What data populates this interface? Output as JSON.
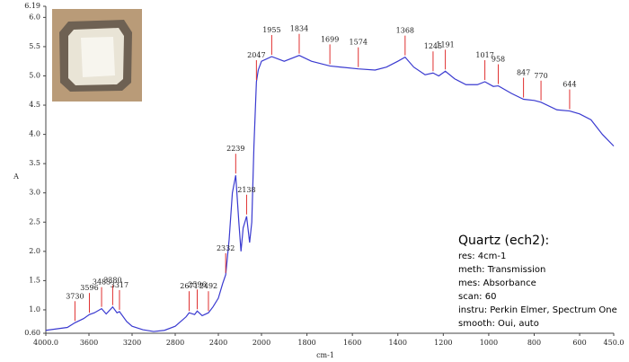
{
  "chart_data": {
    "type": "line",
    "x_label": "cm-1",
    "y_label": "A",
    "xlim": [
      4000,
      450
    ],
    "xbreak": 2000,
    "ylim": [
      0.6,
      6.19
    ],
    "xticks": [
      {
        "value": 4000,
        "label": "4000.0"
      },
      3600,
      3200,
      2800,
      2400,
      2000,
      1800,
      1600,
      1400,
      1200,
      1000,
      800,
      600,
      {
        "value": 450,
        "label": "450.0"
      }
    ],
    "yticks": [
      {
        "value": 0.6,
        "label": "0.60"
      },
      {
        "value": 1,
        "label": "1.0"
      },
      1.5,
      {
        "value": 2,
        "label": "2.0"
      },
      2.5,
      {
        "value": 3,
        "label": "3.0"
      },
      3.5,
      {
        "value": 4,
        "label": "4.0"
      },
      4.5,
      {
        "value": 5,
        "label": "5.0"
      },
      5.5,
      {
        "value": 6,
        "label": "6.0"
      },
      6.19
    ],
    "series": [
      {
        "color": "#3a3ad0",
        "x": [
          4000,
          3800,
          3730,
          3650,
          3596,
          3550,
          3483,
          3440,
          3380,
          3340,
          3317,
          3250,
          3200,
          3100,
          3000,
          2900,
          2800,
          2700,
          2671,
          2620,
          2596,
          2550,
          2492,
          2450,
          2400,
          2360,
          2332,
          2300,
          2270,
          2239,
          2210,
          2190,
          2170,
          2138,
          2110,
          2090,
          2070,
          2047,
          2030,
          2000,
          1955,
          1900,
          1834,
          1780,
          1699,
          1650,
          1574,
          1500,
          1450,
          1400,
          1368,
          1330,
          1280,
          1245,
          1220,
          1191,
          1150,
          1100,
          1050,
          1017,
          980,
          958,
          900,
          847,
          800,
          770,
          700,
          644,
          600,
          550,
          500,
          450
        ],
        "values": [
          0.65,
          0.7,
          0.78,
          0.85,
          0.92,
          0.95,
          1.02,
          0.93,
          1.05,
          0.95,
          0.97,
          0.8,
          0.72,
          0.66,
          0.63,
          0.65,
          0.72,
          0.88,
          0.95,
          0.92,
          0.98,
          0.9,
          0.95,
          1.05,
          1.2,
          1.45,
          1.6,
          2.2,
          3.0,
          3.3,
          2.5,
          2.0,
          2.4,
          2.6,
          2.15,
          2.5,
          3.8,
          4.9,
          5.1,
          5.25,
          5.33,
          5.25,
          5.35,
          5.25,
          5.17,
          5.15,
          5.12,
          5.1,
          5.15,
          5.25,
          5.32,
          5.15,
          5.02,
          5.05,
          5.0,
          5.08,
          4.95,
          4.85,
          4.85,
          4.9,
          4.82,
          4.83,
          4.7,
          4.6,
          4.58,
          4.55,
          4.42,
          4.4,
          4.35,
          4.25,
          4.0,
          3.8
        ]
      }
    ],
    "peak_color": "#e03030",
    "peaks": [
      3730,
      3596,
      3483,
      3380,
      3317,
      2671,
      2596,
      2492,
      2332,
      2239,
      2138,
      2047,
      1955,
      1834,
      1699,
      1574,
      1368,
      1245,
      1191,
      1017,
      958,
      847,
      770,
      644
    ],
    "info": {
      "title": "Quartz (ech2):",
      "lines": [
        "res: 4cm-1",
        "meth: Transmission",
        "mes: Absorbance",
        "scan: 60",
        "instru: Perkin Elmer, Spectrum One",
        "smooth: Oui, auto"
      ]
    }
  }
}
